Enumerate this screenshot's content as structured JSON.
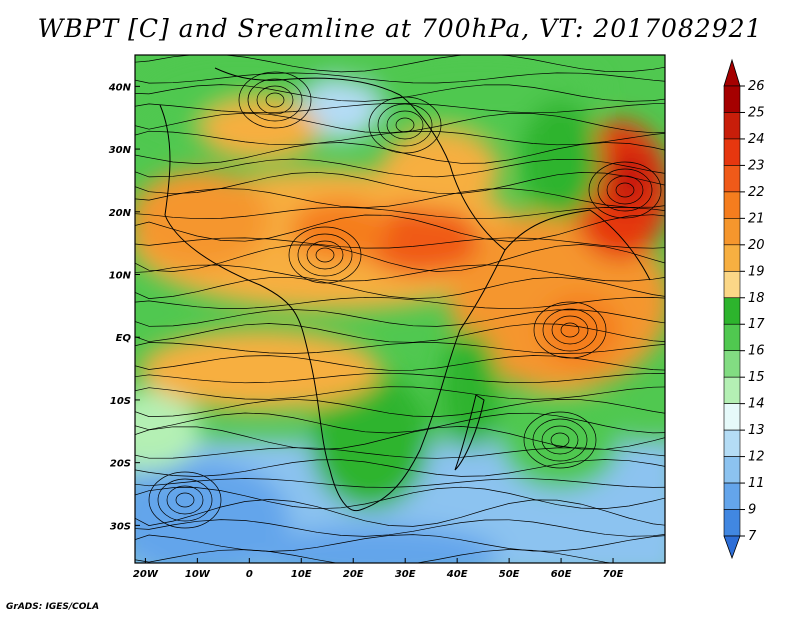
{
  "title": "WBPT [C] and Sreamline at 700hPa, VT: 2017082921",
  "credit": "GrADS: IGES/COLA",
  "map": {
    "lon_range": [
      -22,
      80
    ],
    "lat_range": [
      -36,
      45
    ],
    "lat_ticks": [
      {
        "value": 40,
        "label": "40N"
      },
      {
        "value": 30,
        "label": "30N"
      },
      {
        "value": 20,
        "label": "20N"
      },
      {
        "value": 10,
        "label": "10N"
      },
      {
        "value": 0,
        "label": "EQ"
      },
      {
        "value": -10,
        "label": "10S"
      },
      {
        "value": -20,
        "label": "20S"
      },
      {
        "value": -30,
        "label": "30S"
      }
    ],
    "lon_ticks": [
      {
        "value": -20,
        "label": "20W"
      },
      {
        "value": -10,
        "label": "10W"
      },
      {
        "value": 0,
        "label": "0"
      },
      {
        "value": 10,
        "label": "10E"
      },
      {
        "value": 20,
        "label": "20E"
      },
      {
        "value": 30,
        "label": "30E"
      },
      {
        "value": 40,
        "label": "40E"
      },
      {
        "value": 50,
        "label": "50E"
      },
      {
        "value": 60,
        "label": "60E"
      },
      {
        "value": 70,
        "label": "70E"
      }
    ]
  },
  "colorbar": {
    "levels": [
      "26",
      "25",
      "24",
      "23",
      "22",
      "21",
      "20",
      "19",
      "18",
      "17",
      "16",
      "15",
      "14",
      "13",
      "12",
      "11",
      "9",
      "7"
    ],
    "colors": [
      "#a50000",
      "#c81e0a",
      "#e6370f",
      "#f05a19",
      "#f57d1e",
      "#f5962d",
      "#f7af41",
      "#fbd787",
      "#2db42d",
      "#50c850",
      "#82dc82",
      "#b4f0b4",
      "#e6fafa",
      "#b4dcf5",
      "#8cc3f0",
      "#64a5eb",
      "#4187e1"
    ],
    "end_colors": {
      "top": "#a50000",
      "bottom": "#2d6ed7"
    }
  }
}
